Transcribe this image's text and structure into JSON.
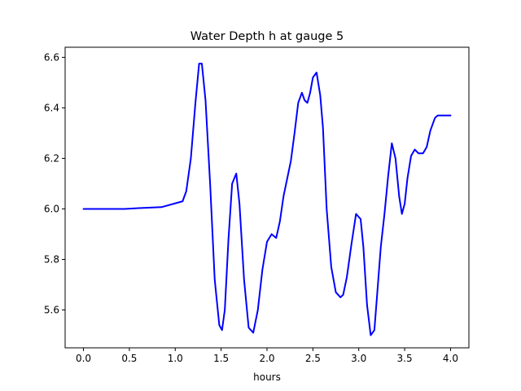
{
  "chart_data": {
    "type": "line",
    "title": "Water Depth h at gauge 5",
    "xlabel": "hours",
    "ylabel": "",
    "xlim": [
      -0.2,
      4.2
    ],
    "ylim": [
      5.45,
      6.64
    ],
    "xticks": [
      0.0,
      0.5,
      1.0,
      1.5,
      2.0,
      2.5,
      3.0,
      3.5,
      4.0
    ],
    "xtick_labels": [
      "0.0",
      "0.5",
      "1.0",
      "1.5",
      "2.0",
      "2.5",
      "3.0",
      "3.5",
      "4.0"
    ],
    "yticks": [
      5.6,
      5.8,
      6.0,
      6.2,
      6.4,
      6.6
    ],
    "ytick_labels": [
      "5.6",
      "5.8",
      "6.0",
      "6.2",
      "6.4",
      "6.6"
    ],
    "grid": false,
    "series": [
      {
        "color": "#0000ff",
        "x": [
          0.0,
          0.45,
          0.6,
          0.85,
          1.0,
          1.08,
          1.12,
          1.17,
          1.22,
          1.26,
          1.29,
          1.33,
          1.38,
          1.43,
          1.48,
          1.51,
          1.54,
          1.58,
          1.62,
          1.665,
          1.7,
          1.75,
          1.8,
          1.85,
          1.9,
          1.95,
          2.0,
          2.05,
          2.1,
          2.14,
          2.18,
          2.22,
          2.26,
          2.3,
          2.34,
          2.38,
          2.41,
          2.44,
          2.47,
          2.5,
          2.54,
          2.58,
          2.61,
          2.65,
          2.7,
          2.75,
          2.8,
          2.83,
          2.87,
          2.92,
          2.97,
          3.02,
          3.05,
          3.09,
          3.13,
          3.17,
          3.2,
          3.24,
          3.28,
          3.32,
          3.36,
          3.4,
          3.44,
          3.47,
          3.5,
          3.53,
          3.57,
          3.61,
          3.65,
          3.7,
          3.74,
          3.78,
          3.83,
          3.86,
          3.89,
          3.92,
          3.96,
          4.0
        ],
        "y": [
          6.0,
          6.0,
          6.003,
          6.007,
          6.022,
          6.03,
          6.07,
          6.2,
          6.42,
          6.575,
          6.575,
          6.43,
          6.1,
          5.72,
          5.54,
          5.52,
          5.6,
          5.88,
          6.1,
          6.14,
          6.02,
          5.72,
          5.53,
          5.51,
          5.6,
          5.76,
          5.87,
          5.9,
          5.885,
          5.95,
          6.05,
          6.12,
          6.19,
          6.3,
          6.42,
          6.46,
          6.43,
          6.42,
          6.46,
          6.52,
          6.54,
          6.45,
          6.32,
          6.0,
          5.77,
          5.67,
          5.65,
          5.66,
          5.73,
          5.86,
          5.98,
          5.96,
          5.85,
          5.62,
          5.5,
          5.52,
          5.66,
          5.85,
          5.98,
          6.13,
          6.26,
          6.2,
          6.05,
          5.98,
          6.02,
          6.12,
          6.21,
          6.235,
          6.22,
          6.22,
          6.245,
          6.31,
          6.36,
          6.37,
          6.37,
          6.37,
          6.37,
          6.37
        ]
      }
    ]
  }
}
